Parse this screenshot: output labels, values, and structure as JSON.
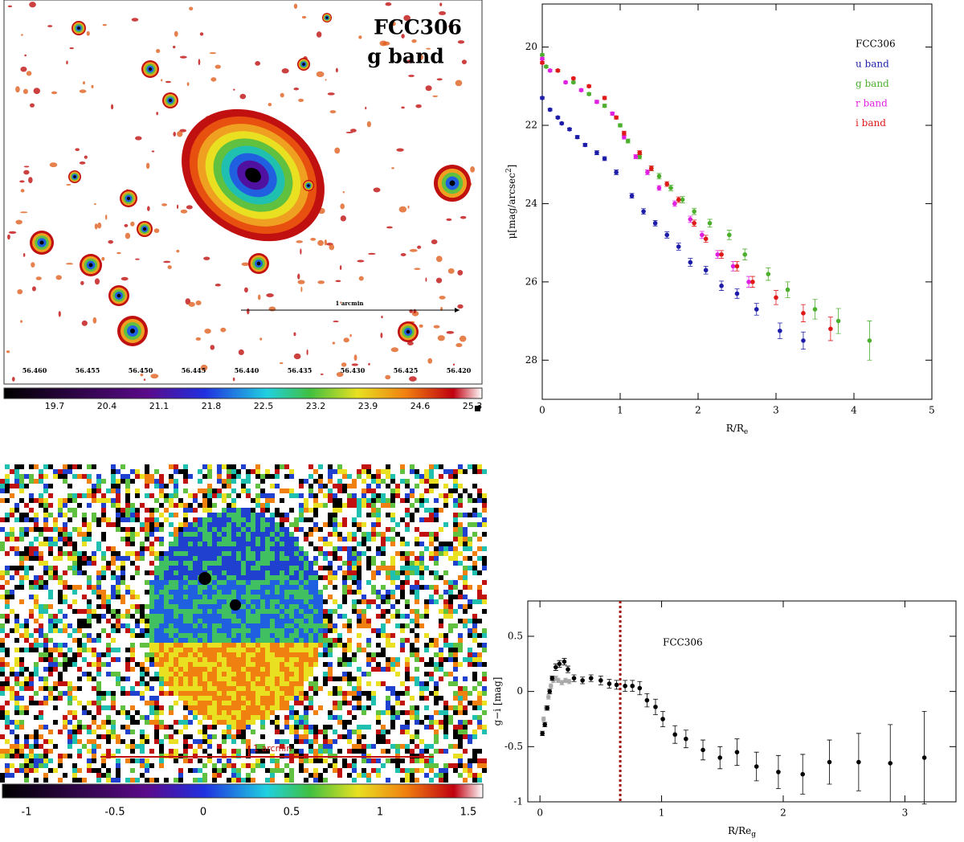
{
  "panels": [
    {
      "title": [
        "FCC306",
        "g band"
      ],
      "scale_label": "1 arcmin",
      "ra_labels": [
        "56.460",
        "56.455",
        "56.450",
        "56.445",
        "56.440",
        "56.435",
        "56.430",
        "56.425",
        "56.420"
      ],
      "colorbar_labels": [
        "19.7",
        "20.4",
        "21.1",
        "21.8",
        "22.5",
        "23.2",
        "23.9",
        "24.6",
        "25.3"
      ]
    },
    {
      "scale_label": "1 arcmin",
      "colorbar_labels": [
        "-1",
        "-0.5",
        "0",
        "0.5",
        "1",
        "1.5"
      ]
    }
  ],
  "chart_data": [
    {
      "type": "scatter",
      "legend_title": "FCC306",
      "x_label": {
        "text": "R/R",
        "sub": "e"
      },
      "y_label": {
        "text": "μ[mag/arcsec",
        "sup": "2",
        "end": "]"
      },
      "xlim": [
        0,
        5
      ],
      "xticks": [
        0,
        1,
        2,
        3,
        4,
        5
      ],
      "ylim": [
        29,
        18.9
      ],
      "yticks": [
        20,
        22,
        24,
        26,
        28
      ],
      "series": [
        {
          "name": "u band",
          "color": "#1c1ca8",
          "x": [
            0,
            0.1,
            0.2,
            0.25,
            0.35,
            0.45,
            0.55,
            0.7,
            0.8,
            0.95,
            1.15,
            1.3,
            1.45,
            1.6,
            1.75,
            1.9,
            2.1,
            2.3,
            2.5,
            2.75,
            3.05,
            3.35
          ],
          "values": [
            21.3,
            21.6,
            21.8,
            21.95,
            22.1,
            22.3,
            22.5,
            22.7,
            22.85,
            23.2,
            23.8,
            24.2,
            24.5,
            24.8,
            25.1,
            25.5,
            25.7,
            26.1,
            26.3,
            26.7,
            27.25,
            27.5
          ],
          "errors": [
            0.03,
            0.03,
            0.03,
            0.03,
            0.03,
            0.04,
            0.04,
            0.05,
            0.05,
            0.06,
            0.06,
            0.07,
            0.07,
            0.08,
            0.09,
            0.1,
            0.1,
            0.12,
            0.12,
            0.15,
            0.2,
            0.22
          ]
        },
        {
          "name": "g band",
          "color": "#4caf2e",
          "x": [
            0,
            0.05,
            0.2,
            0.4,
            0.6,
            0.8,
            1.0,
            1.1,
            1.25,
            1.4,
            1.5,
            1.65,
            1.8,
            1.95,
            2.15,
            2.4,
            2.6,
            2.9,
            3.15,
            3.5,
            3.8,
            4.2
          ],
          "values": [
            20.2,
            20.5,
            20.6,
            20.9,
            21.2,
            21.5,
            22.0,
            22.4,
            22.8,
            23.1,
            23.3,
            23.6,
            23.9,
            24.2,
            24.5,
            24.8,
            25.3,
            25.8,
            26.2,
            26.7,
            27.0,
            27.5
          ],
          "errors": [
            0.03,
            0.03,
            0.03,
            0.03,
            0.03,
            0.04,
            0.04,
            0.05,
            0.06,
            0.06,
            0.07,
            0.07,
            0.08,
            0.08,
            0.1,
            0.12,
            0.14,
            0.16,
            0.2,
            0.25,
            0.32,
            0.5
          ]
        },
        {
          "name": "r band",
          "color": "#e020e0",
          "x": [
            0,
            0.1,
            0.3,
            0.5,
            0.7,
            0.9,
            1.05,
            1.2,
            1.35,
            1.5,
            1.7,
            1.9,
            2.05,
            2.25,
            2.45,
            2.65
          ],
          "values": [
            20.3,
            20.6,
            20.9,
            21.1,
            21.4,
            21.7,
            22.3,
            22.8,
            23.2,
            23.6,
            24.0,
            24.4,
            24.8,
            25.3,
            25.6,
            26.0
          ],
          "errors": [
            0.03,
            0.03,
            0.03,
            0.03,
            0.04,
            0.04,
            0.05,
            0.05,
            0.06,
            0.06,
            0.07,
            0.08,
            0.09,
            0.1,
            0.12,
            0.14
          ]
        },
        {
          "name": "i band",
          "color": "#e01818",
          "x": [
            0,
            0.2,
            0.4,
            0.6,
            0.8,
            0.95,
            1.05,
            1.25,
            1.4,
            1.6,
            1.75,
            1.95,
            2.1,
            2.3,
            2.5,
            2.7,
            3.0,
            3.35,
            3.7
          ],
          "values": [
            20.4,
            20.6,
            20.8,
            21.0,
            21.3,
            21.8,
            22.2,
            22.7,
            23.1,
            23.5,
            23.9,
            24.5,
            24.9,
            25.3,
            25.6,
            26.0,
            26.4,
            26.8,
            27.2
          ],
          "errors": [
            0.03,
            0.03,
            0.03,
            0.03,
            0.04,
            0.04,
            0.05,
            0.05,
            0.06,
            0.06,
            0.07,
            0.08,
            0.09,
            0.1,
            0.12,
            0.14,
            0.18,
            0.22,
            0.3
          ]
        }
      ]
    },
    {
      "type": "scatter",
      "annotation": "FCC306",
      "x_label": {
        "text": "R/Re",
        "sub": "g"
      },
      "y_label": {
        "text": "g−i [mag]"
      },
      "xlim": [
        -0.1,
        3.42
      ],
      "xticks": [
        0,
        1,
        2,
        3
      ],
      "ylim": [
        -1,
        0.82
      ],
      "yticks": [
        -1,
        -0.5,
        0,
        0.5
      ],
      "vline": 0.66,
      "vline_color": "#a01010",
      "series": [
        {
          "color": "#aaaaaa",
          "x": [
            0.03,
            0.05,
            0.07,
            0.09,
            0.11,
            0.13,
            0.15,
            0.18,
            0.21,
            0.24
          ],
          "values": [
            -0.25,
            -0.15,
            -0.05,
            0.05,
            0.1,
            0.12,
            0.1,
            0.08,
            0.1,
            0.09
          ],
          "errors": [
            0.02,
            0.02,
            0.02,
            0.02,
            0.02,
            0.02,
            0.02,
            0.02,
            0.02,
            0.02
          ]
        },
        {
          "color": "#000000",
          "x": [
            0.02,
            0.04,
            0.06,
            0.08,
            0.1,
            0.13,
            0.16,
            0.2,
            0.23,
            0.28,
            0.35,
            0.42,
            0.5,
            0.57,
            0.63,
            0.7,
            0.76,
            0.82,
            0.88,
            0.95,
            1.01,
            1.11,
            1.2,
            1.34,
            1.48,
            1.62,
            1.78,
            1.96,
            2.16,
            2.38,
            2.62,
            2.88,
            3.16
          ],
          "values": [
            -0.38,
            -0.3,
            -0.15,
            0.0,
            0.12,
            0.22,
            0.25,
            0.27,
            0.2,
            0.12,
            0.1,
            0.12,
            0.1,
            0.07,
            0.06,
            0.05,
            0.05,
            0.03,
            -0.08,
            -0.14,
            -0.25,
            -0.39,
            -0.43,
            -0.53,
            -0.6,
            -0.55,
            -0.68,
            -0.73,
            -0.75,
            -0.64,
            -0.64,
            -0.65,
            -0.6
          ],
          "errors": [
            0.02,
            0.02,
            0.02,
            0.02,
            0.02,
            0.03,
            0.03,
            0.03,
            0.03,
            0.03,
            0.03,
            0.03,
            0.04,
            0.04,
            0.04,
            0.05,
            0.05,
            0.06,
            0.06,
            0.07,
            0.07,
            0.08,
            0.08,
            0.09,
            0.1,
            0.12,
            0.13,
            0.15,
            0.18,
            0.2,
            0.26,
            0.35,
            0.42
          ]
        }
      ]
    }
  ]
}
